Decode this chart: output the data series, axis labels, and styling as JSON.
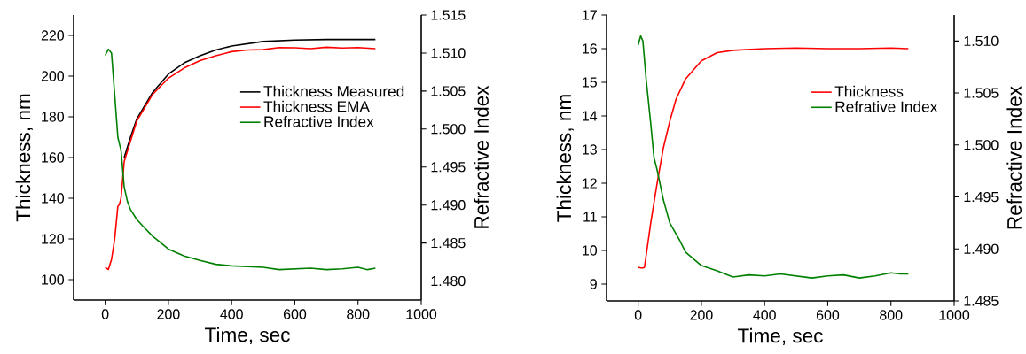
{
  "chart_data": [
    {
      "type": "line",
      "xlabel": "Time, sec",
      "ylabel": "Thickness, nm",
      "y2label": "Refractive Index",
      "xlim": [
        -100,
        1000
      ],
      "xticks": [
        0,
        200,
        400,
        600,
        800,
        1000
      ],
      "ylim": [
        90,
        230
      ],
      "yticks": [
        100,
        120,
        140,
        160,
        180,
        200,
        220
      ],
      "y2lim": [
        1.4775,
        1.515
      ],
      "y2ticks": [
        {
          "value": 1.48,
          "label": "1.480"
        },
        {
          "value": 1.485,
          "label": "1.485"
        },
        {
          "value": 1.49,
          "label": "1.490"
        },
        {
          "value": 1.495,
          "label": "1.495"
        },
        {
          "value": 1.5,
          "label": "1.500"
        },
        {
          "value": 1.505,
          "label": "1.505"
        },
        {
          "value": 1.51,
          "label": "1.510"
        },
        {
          "value": 1.515,
          "label": "1.515"
        }
      ],
      "legend": "top right",
      "series": [
        {
          "name": "Thickness Measured",
          "color": "#000000",
          "x": [
            60,
            80,
            100,
            150,
            200,
            250,
            300,
            350,
            400,
            500,
            600,
            700,
            855
          ],
          "values": [
            160,
            170,
            179,
            192,
            201,
            206.5,
            210,
            212.8,
            214.8,
            217,
            217.7,
            218,
            218
          ]
        },
        {
          "name": "Thickness EMA",
          "color": "#ff0000",
          "x": [
            0,
            10,
            20,
            30,
            40,
            45,
            50,
            60,
            80,
            100,
            150,
            200,
            250,
            300,
            350,
            400,
            450,
            500,
            550,
            600,
            650,
            700,
            750,
            800,
            855
          ],
          "values": [
            106,
            105,
            110,
            120,
            136,
            137,
            140,
            158,
            168,
            178,
            191,
            199,
            204,
            207.6,
            210,
            212,
            212.8,
            213,
            214,
            213.9,
            213.5,
            214.2,
            213.8,
            214,
            213.5
          ]
        },
        {
          "name": "Refractive Index",
          "color": "#008000",
          "axis": "y2",
          "x": [
            0,
            10,
            20,
            30,
            40,
            50,
            60,
            70,
            80,
            100,
            120,
            150,
            200,
            250,
            300,
            350,
            400,
            450,
            500,
            550,
            600,
            650,
            700,
            750,
            800,
            830,
            855
          ],
          "values": [
            1.5097,
            1.5105,
            1.51,
            1.5045,
            1.4989,
            1.4972,
            1.4924,
            1.4905,
            1.4894,
            1.4881,
            1.4872,
            1.4859,
            1.4842,
            1.4833,
            1.4827,
            1.4822,
            1.482,
            1.4819,
            1.4818,
            1.4815,
            1.4816,
            1.4817,
            1.4815,
            1.4816,
            1.4818,
            1.4815,
            1.4817
          ]
        }
      ]
    },
    {
      "type": "line",
      "xlabel": "Time, sec",
      "ylabel": "Thickness, nm",
      "y2label": "Refractive Index",
      "xlim": [
        -100,
        1000
      ],
      "xticks": [
        0,
        200,
        400,
        600,
        800,
        1000
      ],
      "ylim": [
        8.5,
        17
      ],
      "yticks": [
        9,
        10,
        11,
        12,
        13,
        14,
        15,
        16,
        17
      ],
      "y2lim": [
        1.485,
        1.5125
      ],
      "y2ticks": [
        {
          "value": 1.485,
          "label": "1.485"
        },
        {
          "value": 1.49,
          "label": "1.490"
        },
        {
          "value": 1.495,
          "label": "1.495"
        },
        {
          "value": 1.5,
          "label": "1.500"
        },
        {
          "value": 1.505,
          "label": "1.505"
        },
        {
          "value": 1.51,
          "label": "1.510"
        }
      ],
      "legend": "top right",
      "series": [
        {
          "name": "Thickness",
          "color": "#ff0000",
          "x": [
            0,
            8,
            15,
            20,
            40,
            60,
            80,
            100,
            120,
            150,
            200,
            250,
            300,
            400,
            500,
            600,
            700,
            800,
            855
          ],
          "values": [
            9.5,
            9.48,
            9.48,
            9.5,
            10.83,
            12.0,
            13.06,
            13.84,
            14.5,
            15.1,
            15.64,
            15.88,
            15.95,
            16.0,
            16.02,
            16.0,
            16.0,
            16.02,
            16.0
          ]
        },
        {
          "name": "Refrative Index",
          "color": "#008000",
          "axis": "y2",
          "x": [
            0,
            8,
            15,
            25,
            40,
            50,
            60,
            80,
            100,
            130,
            150,
            200,
            250,
            300,
            350,
            400,
            450,
            500,
            550,
            600,
            650,
            700,
            750,
            800,
            830,
            855
          ],
          "values": [
            1.5096,
            1.5105,
            1.51,
            1.5064,
            1.502,
            1.4988,
            1.4976,
            1.4947,
            1.4925,
            1.4909,
            1.4897,
            1.4884,
            1.4879,
            1.4873,
            1.4875,
            1.4874,
            1.4876,
            1.4874,
            1.4872,
            1.4874,
            1.4875,
            1.4872,
            1.4874,
            1.4877,
            1.4876,
            1.4876
          ]
        }
      ]
    }
  ]
}
